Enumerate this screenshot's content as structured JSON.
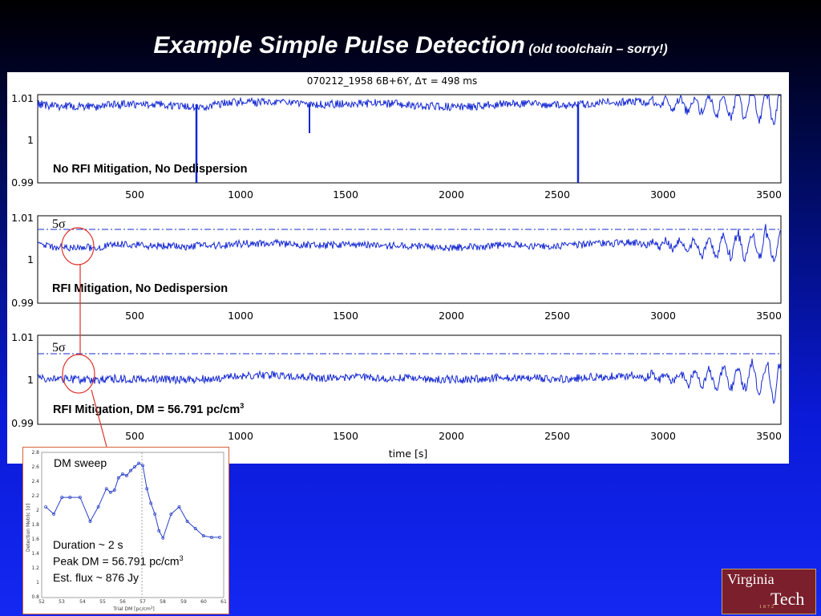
{
  "slide": {
    "title": "Example Simple Pulse Detection",
    "subtitle": "(old toolchain – sorry!)"
  },
  "figure": {
    "plot_title": "070212_1958 6B+6Y, Δτ = 498 ms",
    "x_label": "time [s]",
    "x_ticks": [
      "500",
      "1000",
      "1500",
      "2000",
      "2500",
      "3000",
      "3500"
    ],
    "y_ticks": [
      "1.01",
      "1",
      "0.99"
    ],
    "panel1_label": "No RFI Mitigation, No Dedispersion",
    "panel2_label": "RFI Mitigation, No Dedispersion",
    "panel3_label_main": "RFI Mitigation, DM = 56.791 pc/cm",
    "panel3_label_sup": "3",
    "threshold_main": "5",
    "threshold_symbol": "σ"
  },
  "chart_data": [
    {
      "type": "line",
      "x_range": [
        0,
        3600
      ],
      "y_range": [
        0.99,
        1.01
      ],
      "note_marks": [
        790,
        1340,
        2600
      ]
    },
    {
      "type": "line",
      "x_range": [
        0,
        3600
      ],
      "y_range": [
        0.99,
        1.01
      ],
      "threshold": 1.0067
    },
    {
      "type": "line",
      "x_range": [
        0,
        3600
      ],
      "y_range": [
        0.99,
        1.01
      ],
      "threshold": 1.0065
    }
  ],
  "inset": {
    "heading": "DM sweep",
    "y_label": "Detection Metric [σ]",
    "x_label": "Trial DM [pc/cm",
    "x_label_sup": "3",
    "x_label_end": "]",
    "x_ticks": [
      "52",
      "53",
      "54",
      "55",
      "56",
      "57",
      "58",
      "59",
      "60",
      "61"
    ],
    "y_ticks": [
      "2.8",
      "2.6",
      "2.4",
      "2.2",
      "2",
      "1.8",
      "1.6",
      "1.4",
      "1.2",
      "1",
      "0.8"
    ],
    "line1": "Duration ~ 2 s",
    "line2_main": "Peak DM = 56.791 pc/cm",
    "line2_sup": "3",
    "line3": "Est. flux ~ 876 Jy"
  },
  "inset_chart": {
    "type": "line",
    "x": [
      52.2,
      52.6,
      53.0,
      53.4,
      53.9,
      54.4,
      54.8,
      55.2,
      55.4,
      55.6,
      55.8,
      56.0,
      56.2,
      56.4,
      56.6,
      56.8,
      57.0,
      57.2,
      57.4,
      57.6,
      57.8,
      58.0,
      58.4,
      58.8,
      59.2,
      59.6,
      60.0,
      60.4,
      60.8
    ],
    "y": [
      2.05,
      1.95,
      2.18,
      2.18,
      2.18,
      1.85,
      2.05,
      2.3,
      2.25,
      2.28,
      2.45,
      2.5,
      2.48,
      2.55,
      2.6,
      2.65,
      2.62,
      2.3,
      2.1,
      1.95,
      1.72,
      1.62,
      1.95,
      2.05,
      1.85,
      1.75,
      1.65,
      1.63,
      1.63
    ],
    "peak_dm": 56.791
  },
  "logo": {
    "line1": "Virginia",
    "line2": "Tech",
    "year": "1872"
  },
  "colors": {
    "trace": "#1428d2",
    "threshold": "#1428d2",
    "callout": "#e0302a"
  }
}
